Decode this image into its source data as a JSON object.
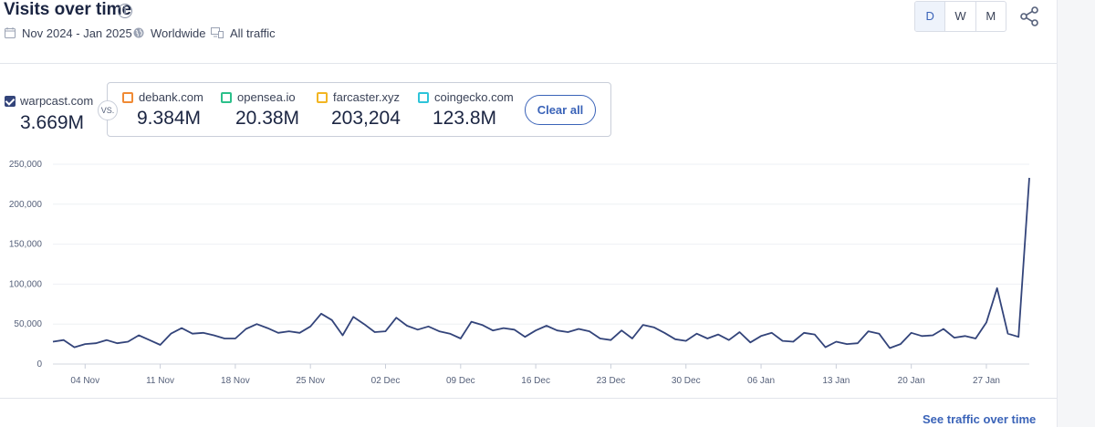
{
  "header": {
    "title": "Visits over time",
    "date_range": "Nov 2024 - Jan 2025",
    "region": "Worldwide",
    "traffic": "All traffic"
  },
  "granularity": {
    "options": [
      "D",
      "W",
      "M"
    ],
    "selected": "D"
  },
  "main_site": {
    "name": "warpcast.com",
    "value": "3.669M",
    "color": "#33447a"
  },
  "vs_label": "VS.",
  "competitors": [
    {
      "name": "debank.com",
      "value": "9.384M",
      "color": "#f08a34"
    },
    {
      "name": "opensea.io",
      "value": "20.38M",
      "color": "#2cc08a"
    },
    {
      "name": "farcaster.xyz",
      "value": "203,204",
      "color": "#f2b522"
    },
    {
      "name": "coingecko.com",
      "value": "123.8M",
      "color": "#2ec4d9"
    }
  ],
  "clear_all_label": "Clear all",
  "footer": {
    "see_link": "See traffic over time"
  },
  "chart_data": {
    "type": "line",
    "ylim": [
      0,
      250000
    ],
    "yticks": [
      "250,000",
      "200,000",
      "150,000",
      "100,000",
      "50,000",
      "0"
    ],
    "ytick_values": [
      250000,
      200000,
      150000,
      100000,
      50000,
      0
    ],
    "xticks": [
      "04 Nov",
      "11 Nov",
      "18 Nov",
      "25 Nov",
      "02 Dec",
      "09 Dec",
      "16 Dec",
      "23 Dec",
      "30 Dec",
      "06 Jan",
      "13 Jan",
      "20 Jan",
      "27 Jan"
    ],
    "x_start": "01 Nov",
    "grid": true,
    "series": [
      {
        "name": "warpcast.com",
        "color": "#33447a",
        "values": [
          28000,
          30000,
          21000,
          25000,
          26000,
          30000,
          26000,
          28000,
          36000,
          30000,
          24000,
          38000,
          45000,
          38000,
          39000,
          36000,
          32000,
          32000,
          44000,
          50000,
          45000,
          39000,
          41000,
          39000,
          47000,
          63000,
          55000,
          36000,
          59000,
          50000,
          40000,
          41000,
          58000,
          48000,
          43000,
          47000,
          41000,
          38000,
          32000,
          53000,
          49000,
          42000,
          45000,
          43000,
          34000,
          42000,
          48000,
          42000,
          40000,
          44000,
          41000,
          32000,
          30000,
          42000,
          32000,
          49000,
          46000,
          39000,
          31000,
          29000,
          38000,
          32000,
          37000,
          30000,
          40000,
          27000,
          35000,
          39000,
          29000,
          28000,
          39000,
          37000,
          21000,
          28000,
          25000,
          26000,
          41000,
          38000,
          20000,
          25000,
          39000,
          35000,
          36000,
          44000,
          33000,
          35000,
          32000,
          52000,
          95000,
          38000,
          34000,
          233000
        ]
      }
    ]
  }
}
